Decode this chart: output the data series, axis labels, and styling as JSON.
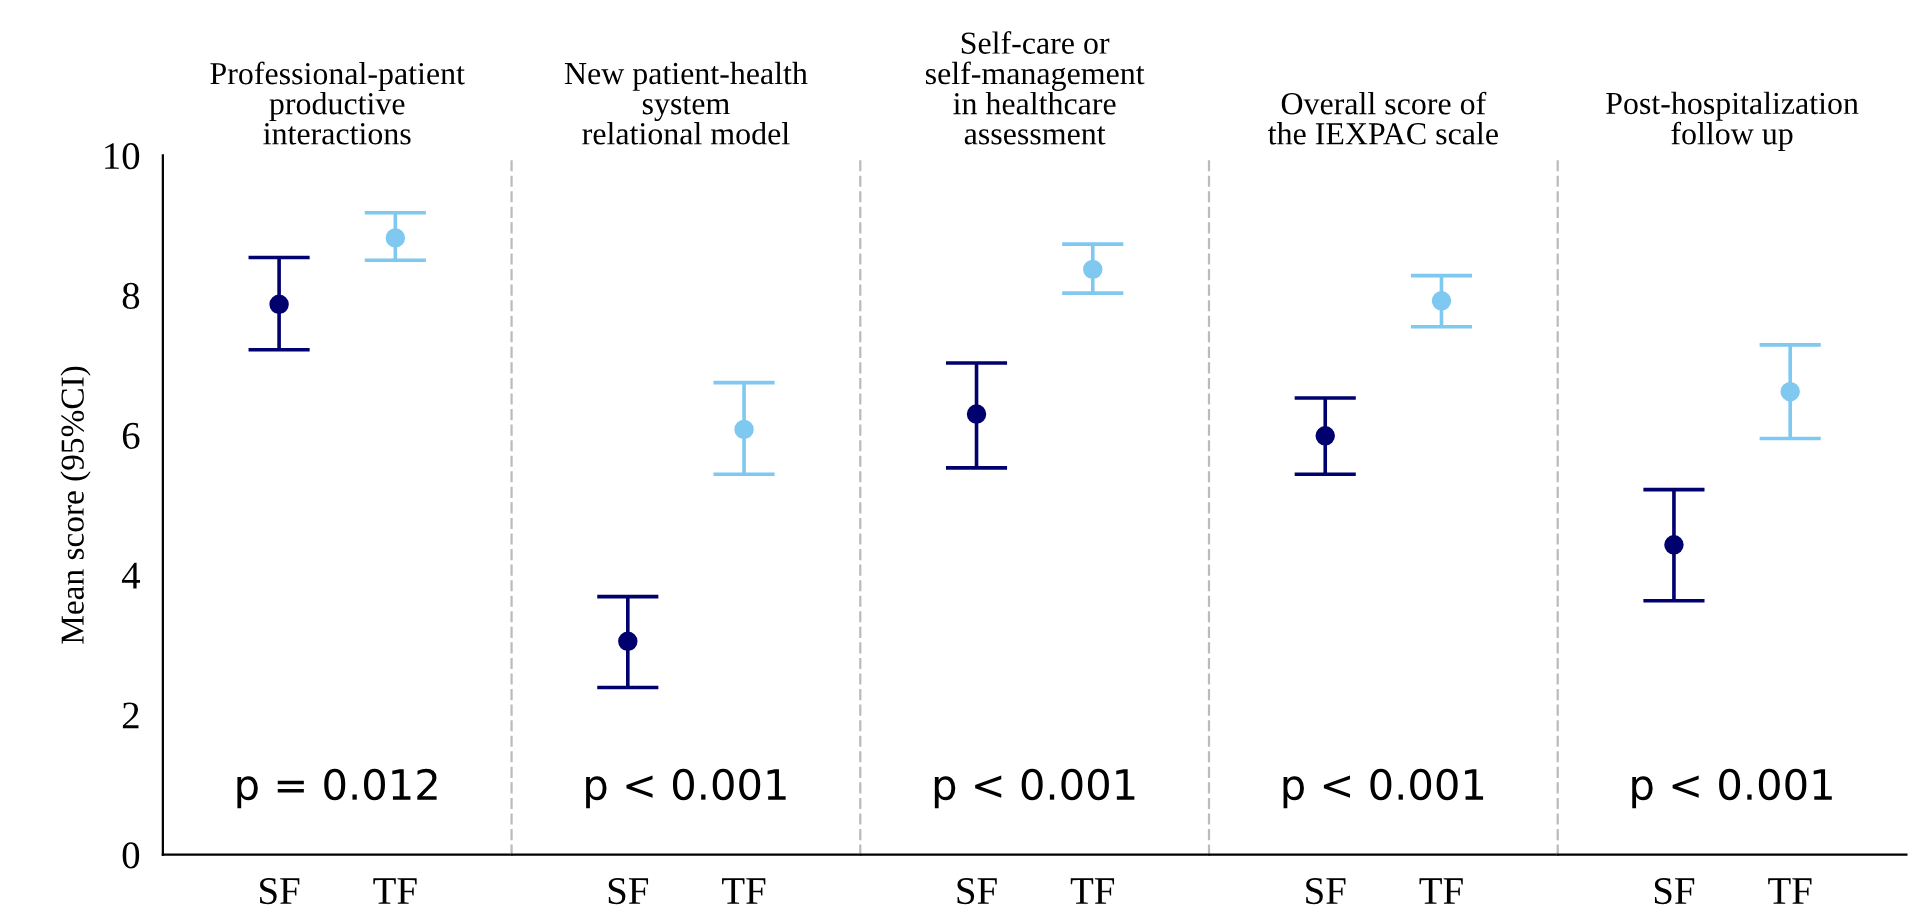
{
  "chart_data": [
    {
      "type": "scatter",
      "title": "Professional-patient\nproductive\ninteractions",
      "ylabel": "Mean score (95%CI)",
      "categories": [
        "SF",
        "TF"
      ],
      "values": [
        7.87,
        8.82
      ],
      "errors": [
        [
          7.22,
          8.54
        ],
        [
          8.5,
          9.18
        ]
      ],
      "colors": [
        "#00006e",
        "#7fc8f0"
      ],
      "marker": "circle",
      "ylim": [
        0,
        10
      ],
      "yticks": [
        0,
        2,
        4,
        6,
        8,
        10
      ],
      "grid": false,
      "legend": false,
      "annotations": [
        "p = 0.012"
      ]
    },
    {
      "type": "scatter",
      "title": "New patient-health\nsystem\nrelational model",
      "categories": [
        "SF",
        "TF"
      ],
      "values": [
        3.05,
        6.08
      ],
      "errors": [
        [
          2.39,
          3.69
        ],
        [
          5.44,
          6.75
        ]
      ],
      "colors": [
        "#00006e",
        "#7fc8f0"
      ],
      "marker": "circle",
      "ylim": [
        0,
        10
      ],
      "yticks": [
        0,
        2,
        4,
        6,
        8,
        10
      ],
      "tick_labels": "x",
      "grid": false,
      "legend": false,
      "annotations": [
        "p < 0.001"
      ]
    },
    {
      "type": "scatter",
      "title": "Self-care or\nself-management\nin healthcare\nassessment",
      "categories": [
        "SF",
        "TF"
      ],
      "values": [
        6.3,
        8.37
      ],
      "errors": [
        [
          5.53,
          7.03
        ],
        [
          8.03,
          8.73
        ]
      ],
      "colors": [
        "#00006e",
        "#7fc8f0"
      ],
      "marker": "circle",
      "ylim": [
        0,
        10
      ],
      "yticks": [
        0,
        2,
        4,
        6,
        8,
        10
      ],
      "tick_labels": "x",
      "grid": false,
      "legend": false,
      "annotations": [
        "p < 0.001"
      ]
    },
    {
      "type": "scatter",
      "title": "Overall score of\nthe IEXPAC scale",
      "categories": [
        "SF",
        "TF"
      ],
      "values": [
        5.99,
        7.92
      ],
      "errors": [
        [
          5.44,
          6.53
        ],
        [
          7.55,
          8.28
        ]
      ],
      "colors": [
        "#00006e",
        "#7fc8f0"
      ],
      "marker": "circle",
      "ylim": [
        0,
        10
      ],
      "yticks": [
        0,
        2,
        4,
        6,
        8,
        10
      ],
      "tick_labels": "x",
      "grid": false,
      "legend": false,
      "annotations": [
        "p < 0.001"
      ]
    },
    {
      "type": "scatter",
      "title": "Post-hospitalization\nfollow up",
      "categories": [
        "SF",
        "TF"
      ],
      "values": [
        4.43,
        6.62
      ],
      "errors": [
        [
          3.63,
          5.22
        ],
        [
          5.95,
          7.29
        ]
      ],
      "colors": [
        "#00006e",
        "#7fc8f0"
      ],
      "marker": "circle",
      "ylim": [
        0,
        10
      ],
      "yticks": [
        0,
        2,
        4,
        6,
        8,
        10
      ],
      "tick_labels": "x",
      "grid": false,
      "legend": false,
      "annotations": [
        "p < 0.001"
      ]
    }
  ]
}
